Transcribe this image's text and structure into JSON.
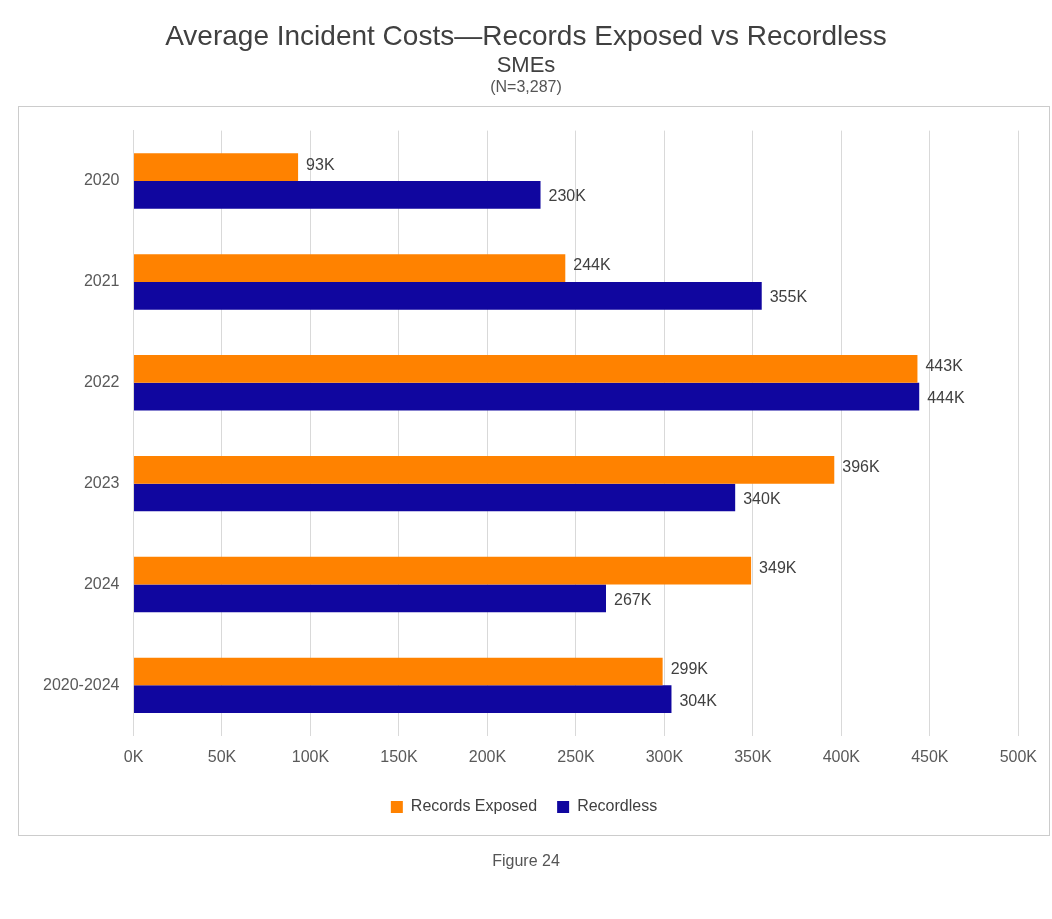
{
  "chart_data": {
    "type": "bar",
    "orientation": "horizontal",
    "title": "Average Incident Costs—Records Exposed vs Recordless",
    "subtitle": "SMEs",
    "annotations": [
      "(N=3,287)",
      "Figure 24"
    ],
    "categories": [
      "2020",
      "2021",
      "2022",
      "2023",
      "2024",
      "2020-2024"
    ],
    "series": [
      {
        "name": "Records Exposed",
        "color": "#ff8200",
        "values": [
          93,
          244,
          443,
          396,
          349,
          299
        ],
        "value_labels": [
          "93K",
          "244K",
          "443K",
          "396K",
          "349K",
          "299K"
        ]
      },
      {
        "name": "Recordless",
        "color": "#10069f",
        "values": [
          230,
          355,
          444,
          340,
          267,
          304
        ],
        "value_labels": [
          "230K",
          "355K",
          "444K",
          "340K",
          "267K",
          "304K"
        ]
      }
    ],
    "xlim": [
      0,
      500
    ],
    "xticks": [
      {
        "value": 0,
        "label": "0K"
      },
      {
        "value": 50,
        "label": "50K"
      },
      {
        "value": 100,
        "label": "100K"
      },
      {
        "value": 150,
        "label": "150K"
      },
      {
        "value": 200,
        "label": "200K"
      },
      {
        "value": 250,
        "label": "250K"
      },
      {
        "value": 300,
        "label": "300K"
      },
      {
        "value": 350,
        "label": "350K"
      },
      {
        "value": 400,
        "label": "400K"
      },
      {
        "value": 450,
        "label": "450K"
      },
      {
        "value": 500,
        "label": "500K"
      }
    ],
    "grid": "x",
    "legend": "bottom"
  }
}
